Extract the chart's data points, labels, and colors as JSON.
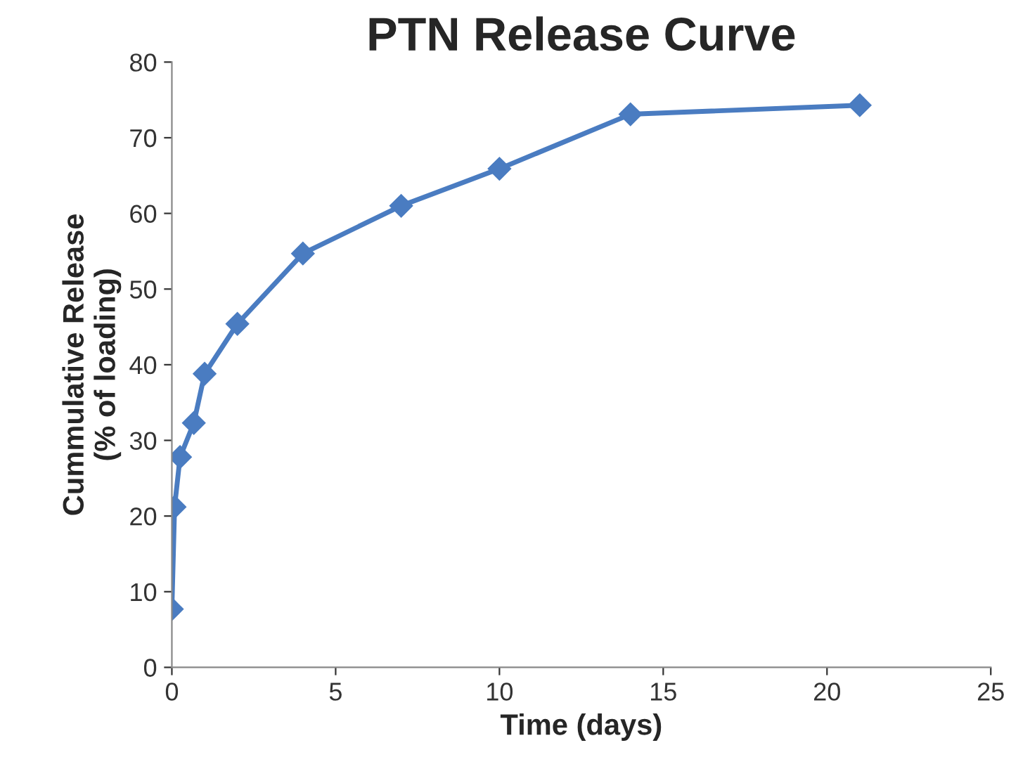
{
  "chart_data": {
    "type": "line",
    "title": "PTN Release Curve",
    "xlabel": "Time (days)",
    "ylabel": "Cummulative Release\n(% of loading)",
    "x": [
      0,
      0.083,
      0.25,
      0.67,
      1,
      2,
      4,
      7,
      10,
      14,
      21
    ],
    "series": [
      {
        "color": "#4a7cc1",
        "values": [
          7.7,
          21.2,
          27.8,
          32.3,
          38.8,
          45.4,
          54.7,
          61,
          65.9,
          73.1,
          74.3
        ]
      }
    ],
    "xlim": [
      0,
      25
    ],
    "xticks": [
      0,
      5,
      10,
      15,
      20,
      25
    ],
    "ylim": [
      0,
      80
    ],
    "yticks": [
      0,
      10,
      20,
      30,
      40,
      50,
      60,
      70,
      80
    ],
    "marker": "diamond",
    "line_style": "solid",
    "grid": false,
    "legend": false
  }
}
